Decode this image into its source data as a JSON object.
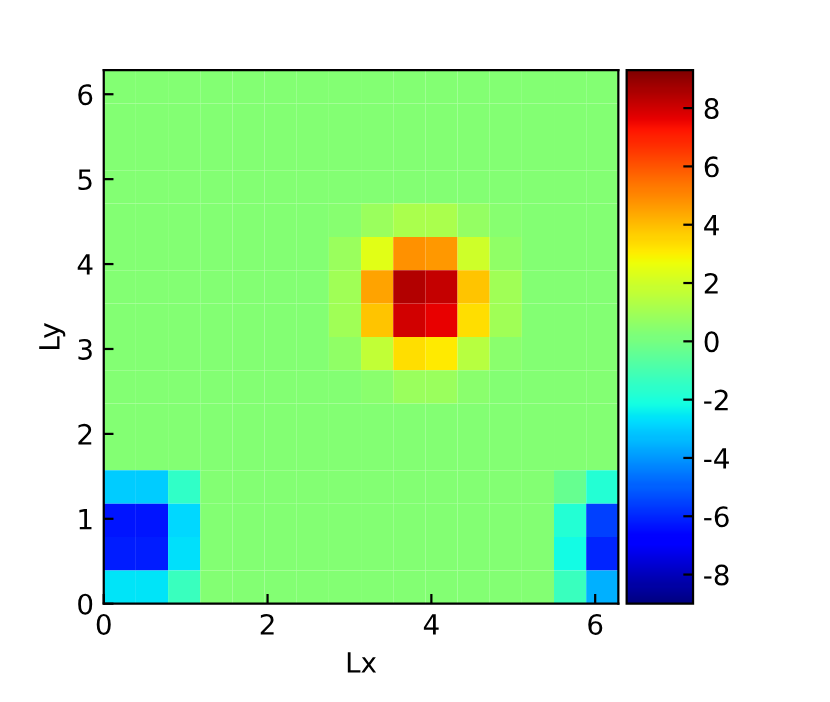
{
  "chart_data": {
    "type": "heatmap",
    "xlabel": "Lx",
    "ylabel": "Ly",
    "x": [
      0.196,
      0.589,
      0.982,
      1.374,
      1.767,
      2.16,
      2.553,
      2.945,
      3.338,
      3.731,
      4.123,
      4.516,
      4.909,
      5.301,
      5.694,
      6.087
    ],
    "y": [
      6.087,
      5.694,
      5.301,
      4.909,
      4.516,
      4.123,
      3.731,
      3.338,
      2.945,
      2.553,
      2.16,
      1.767,
      1.374,
      0.982,
      0.589,
      0.196
    ],
    "xlim": [
      0,
      6.283
    ],
    "ylim": [
      0,
      6.283
    ],
    "xticks": [
      0,
      2,
      4,
      6
    ],
    "yticks": [
      0,
      1,
      2,
      3,
      4,
      5,
      6
    ],
    "clim": [
      -9,
      9.3
    ],
    "cticks": [
      -8,
      -6,
      -4,
      -2,
      0,
      2,
      4,
      6,
      8
    ],
    "cells": [
      [
        0.3,
        0.3,
        0.3,
        0.3,
        0.3,
        0.3,
        0.3,
        0.3,
        0.3,
        0.3,
        0.3,
        0.3,
        0.3,
        0.3,
        0.3,
        0.3
      ],
      [
        0.3,
        0.3,
        0.3,
        0.3,
        0.3,
        0.3,
        0.3,
        0.3,
        0.3,
        0.3,
        0.3,
        0.3,
        0.3,
        0.3,
        0.3,
        0.3
      ],
      [
        0.3,
        0.3,
        0.3,
        0.3,
        0.3,
        0.3,
        0.3,
        0.3,
        0.3,
        0.3,
        0.3,
        0.3,
        0.3,
        0.3,
        0.3,
        0.3
      ],
      [
        0.3,
        0.3,
        0.3,
        0.3,
        0.3,
        0.3,
        0.3,
        0.3,
        0.3,
        0.3,
        0.3,
        0.3,
        0.3,
        0.3,
        0.3,
        0.3
      ],
      [
        0.3,
        0.3,
        0.3,
        0.3,
        0.3,
        0.3,
        0.3,
        0.4,
        0.8,
        1.2,
        1.2,
        0.7,
        0.4,
        0.3,
        0.3,
        0.3
      ],
      [
        0.3,
        0.3,
        0.3,
        0.3,
        0.3,
        0.3,
        0.3,
        0.8,
        2.4,
        4.8,
        4.7,
        2,
        0.6,
        0.3,
        0.3,
        0.3
      ],
      [
        0.3,
        0.3,
        0.3,
        0.3,
        0.3,
        0.3,
        0.3,
        1,
        4.5,
        8.5,
        8.2,
        3.8,
        1,
        0.3,
        0.3,
        0.3
      ],
      [
        0.3,
        0.3,
        0.3,
        0.3,
        0.3,
        0.3,
        0.3,
        1,
        3.8,
        8,
        7.6,
        3.3,
        1,
        0.3,
        0.3,
        0.3
      ],
      [
        0.3,
        0.3,
        0.3,
        0.3,
        0.3,
        0.3,
        0.3,
        0.6,
        1.7,
        3.3,
        3.1,
        1.5,
        0.5,
        0.3,
        0.3,
        0.3
      ],
      [
        0.3,
        0.3,
        0.3,
        0.3,
        0.3,
        0.3,
        0.3,
        0.3,
        0.5,
        0.8,
        0.8,
        0.5,
        0.3,
        0.3,
        0.3,
        0.3
      ],
      [
        0.3,
        0.3,
        0.3,
        0.3,
        0.3,
        0.3,
        0.3,
        0.3,
        0.3,
        0.3,
        0.3,
        0.3,
        0.3,
        0.3,
        0.3,
        0.3
      ],
      [
        0.3,
        0.3,
        0.3,
        0.3,
        0.3,
        0.3,
        0.3,
        0.3,
        0.3,
        0.3,
        0.3,
        0.3,
        0.3,
        0.3,
        0.3,
        0.3
      ],
      [
        -3,
        -3,
        -1.5,
        0.3,
        0.3,
        0.3,
        0.3,
        0.3,
        0.3,
        0.3,
        0.3,
        0.3,
        0.3,
        0.3,
        -0.3,
        -1.8
      ],
      [
        -6.3,
        -6.3,
        -2.8,
        0.3,
        0.3,
        0.3,
        0.3,
        0.3,
        0.3,
        0.3,
        0.3,
        0.3,
        0.3,
        0.3,
        -1.8,
        -5.5
      ],
      [
        -6.2,
        -6.2,
        -2.7,
        0.3,
        0.3,
        0.3,
        0.3,
        0.3,
        0.3,
        0.3,
        0.3,
        0.3,
        0.3,
        0.3,
        -2.2,
        -6
      ],
      [
        -2.6,
        -2.6,
        -1.3,
        0.3,
        0.3,
        0.3,
        0.3,
        0.3,
        0.3,
        0.3,
        0.3,
        0.3,
        0.3,
        0.3,
        -1.3,
        -3.5
      ]
    ]
  }
}
